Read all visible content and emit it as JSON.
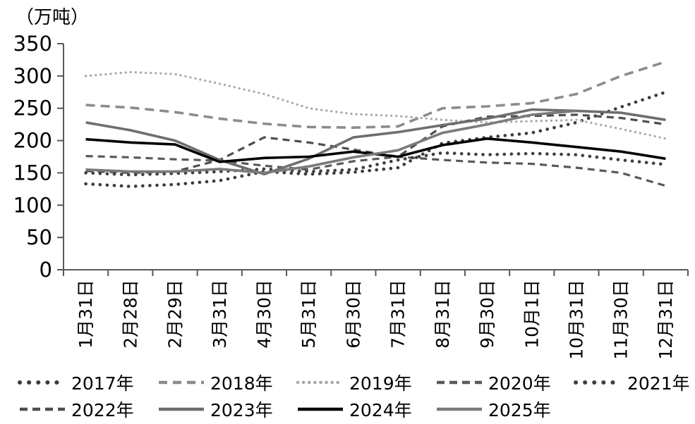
{
  "unit_label": "（万吨）",
  "chart_data": {
    "type": "line",
    "title": "",
    "ylabel": "（万吨）",
    "xlabel": "",
    "ylim": [
      0,
      350
    ],
    "yticks": [
      0,
      50,
      100,
      150,
      200,
      250,
      300,
      350
    ],
    "grid": false,
    "legend_position": "bottom",
    "categories": [
      "1月31日",
      "2月28日",
      "2月29日",
      "3月31日",
      "4月30日",
      "5月31日",
      "6月30日",
      "7月31日",
      "8月31日",
      "9月30日",
      "10月1日",
      "10月31日",
      "11月30日",
      "12月31日"
    ],
    "series": [
      {
        "name": "2017年",
        "style": "dot-bold",
        "color": "#3c3c3c",
        "values": [
          133,
          129,
          132,
          138,
          152,
          148,
          151,
          158,
          196,
          205,
          212,
          228,
          252,
          275
        ]
      },
      {
        "name": "2018年",
        "style": "dash-medium",
        "color": "#8c8c8c",
        "values": [
          255,
          251,
          244,
          234,
          226,
          221,
          220,
          222,
          250,
          253,
          258,
          272,
          300,
          322
        ]
      },
      {
        "name": "2019年",
        "style": "dot-fine",
        "color": "#a6a6a6",
        "values": [
          300,
          306,
          303,
          288,
          272,
          250,
          241,
          238,
          232,
          228,
          230,
          232,
          218,
          203
        ]
      },
      {
        "name": "2020年",
        "style": "dash-dark",
        "color": "#595959",
        "values": [
          176,
          174,
          171,
          169,
          161,
          155,
          168,
          175,
          170,
          166,
          164,
          158,
          150,
          130
        ]
      },
      {
        "name": "2021年",
        "style": "dot-bold",
        "color": "#404040",
        "values": [
          150,
          147,
          149,
          152,
          156,
          152,
          155,
          170,
          181,
          178,
          180,
          178,
          170,
          163
        ]
      },
      {
        "name": "2022年",
        "style": "dash-dark",
        "color": "#4d4d4d",
        "values": [
          153,
          150,
          152,
          170,
          205,
          197,
          186,
          175,
          222,
          237,
          238,
          240,
          235,
          225
        ]
      },
      {
        "name": "2023年",
        "style": "solid",
        "color": "#6e6e6e",
        "values": [
          228,
          216,
          200,
          170,
          148,
          172,
          205,
          213,
          224,
          234,
          248,
          246,
          243,
          232
        ]
      },
      {
        "name": "2024年",
        "style": "solid",
        "color": "#000000",
        "values": [
          202,
          197,
          194,
          167,
          173,
          175,
          183,
          175,
          193,
          203,
          197,
          190,
          183,
          172
        ]
      },
      {
        "name": "2025年",
        "style": "solid",
        "color": "#7a7a7a",
        "values": [
          155,
          152,
          152,
          156,
          150,
          160,
          174,
          185,
          212,
          225,
          240,
          246,
          null,
          null
        ]
      }
    ],
    "axis_color": "#595959",
    "legend_rows": [
      5,
      4
    ]
  }
}
